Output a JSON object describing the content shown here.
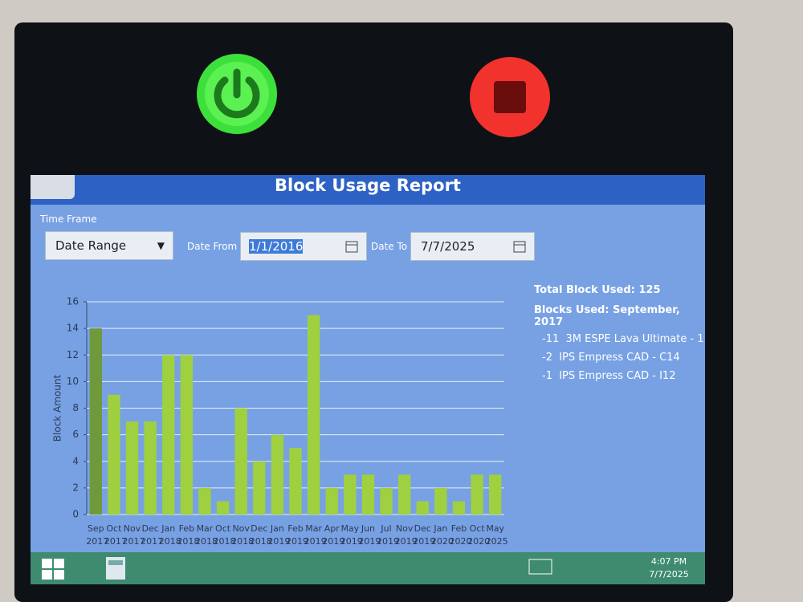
{
  "header": {
    "title": "Block Usage Report"
  },
  "filters": {
    "time_frame_label": "Time Frame",
    "time_frame": "Date Range",
    "date_from_label": "Date From",
    "date_from": "1/1/2016",
    "date_to_label": "Date To",
    "date_to": "7/7/2025"
  },
  "summary": {
    "total": "Total Block Used: 125",
    "period": "Blocks Used: September, 2017",
    "items": [
      "-11  3M ESPE Lava Ultimate - 1",
      "-2  IPS Empress CAD - C14",
      "-1  IPS Empress CAD - I12"
    ]
  },
  "chart_data": {
    "type": "bar",
    "y_label": "Block Amount",
    "categories": [
      "Sep 2017",
      "Oct 2017",
      "Nov 2017",
      "Dec 2017",
      "Jan 2018",
      "Feb 2018",
      "Mar 2018",
      "Oct 2018",
      "Nov 2018",
      "Dec 2018",
      "Jan 2019",
      "Feb 2019",
      "Mar 2019",
      "Apr 2019",
      "May 2019",
      "Jun 2019",
      "Jul 2019",
      "Nov 2019",
      "Dec 2019",
      "Jan 2020",
      "Feb 2020",
      "Oct 2020",
      "May 2025"
    ],
    "values": [
      14,
      9,
      7,
      7,
      12,
      12,
      2,
      1,
      8,
      4,
      6,
      5,
      15,
      2,
      3,
      3,
      2,
      3,
      1,
      2,
      1,
      3,
      3
    ],
    "color": "#9fd03f",
    "selected": 0,
    "selected_color": "#6f9a3c",
    "ylim": [
      0,
      16
    ],
    "yticks": [
      0,
      2,
      4,
      6,
      8,
      10,
      12,
      14,
      16
    ],
    "grid": true
  },
  "taskbar": {
    "time": "4:07 PM",
    "date": "7/7/2025"
  }
}
